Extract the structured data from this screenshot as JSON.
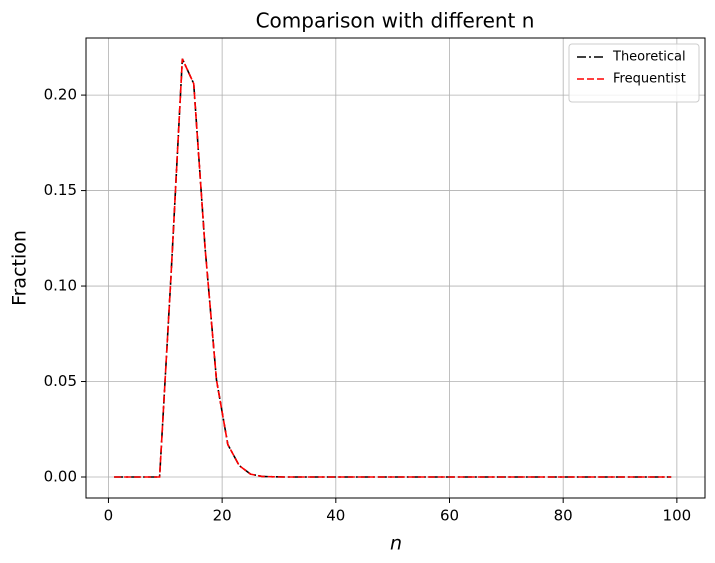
{
  "chart_data": {
    "type": "line",
    "title": "Comparison with different n",
    "xlabel": "n",
    "ylabel": "Fraction",
    "x": [
      1,
      3,
      5,
      7,
      9,
      11,
      13,
      15,
      17,
      19,
      21,
      23,
      25,
      27,
      29,
      31,
      33,
      35,
      37,
      39,
      41,
      43,
      45,
      47,
      49,
      51,
      53,
      55,
      57,
      59,
      61,
      63,
      65,
      67,
      69,
      71,
      73,
      75,
      77,
      79,
      81,
      83,
      85,
      87,
      89,
      91,
      93,
      95,
      97,
      99
    ],
    "series": [
      {
        "name": "Theoretical",
        "color": "#000000",
        "dash": "dashdot",
        "values": [
          0,
          0,
          0,
          0,
          0,
          0.105,
          0.219,
          0.206,
          0.12,
          0.051,
          0.017,
          0.006,
          0.0015,
          0.0003,
          0.0001,
          0,
          0,
          0,
          0,
          0,
          0,
          0,
          0,
          0,
          0,
          0,
          0,
          0,
          0,
          0,
          0,
          0,
          0,
          0,
          0,
          0,
          0,
          0,
          0,
          0,
          0,
          0,
          0,
          0,
          0,
          0,
          0,
          0,
          0,
          0
        ]
      },
      {
        "name": "Frequentist",
        "color": "#ff0000",
        "dash": "dashed",
        "values": [
          0,
          0,
          0,
          0,
          0,
          0.105,
          0.219,
          0.206,
          0.12,
          0.051,
          0.017,
          0.006,
          0.0015,
          0.0003,
          0.0001,
          0,
          0,
          0,
          0,
          0,
          0,
          0,
          0,
          0,
          0,
          0,
          0,
          0,
          0,
          0,
          0,
          0,
          0,
          0,
          0,
          0,
          0,
          0,
          0,
          0,
          0,
          0,
          0,
          0,
          0,
          0,
          0,
          0,
          0,
          0
        ]
      }
    ],
    "xlim": [
      -3.95,
      104.95
    ],
    "xticks": [
      0,
      20,
      40,
      60,
      80,
      100
    ],
    "ylim": [
      -0.011,
      0.2299
    ],
    "yticks": [
      {
        "value": 0,
        "label": "0.00"
      },
      {
        "value": 0.05,
        "label": "0.05"
      },
      {
        "value": 0.1,
        "label": "0.10"
      },
      {
        "value": 0.15,
        "label": "0.15"
      },
      {
        "value": 0.2,
        "label": "0.20"
      }
    ],
    "grid": true,
    "legend": "upper right"
  }
}
